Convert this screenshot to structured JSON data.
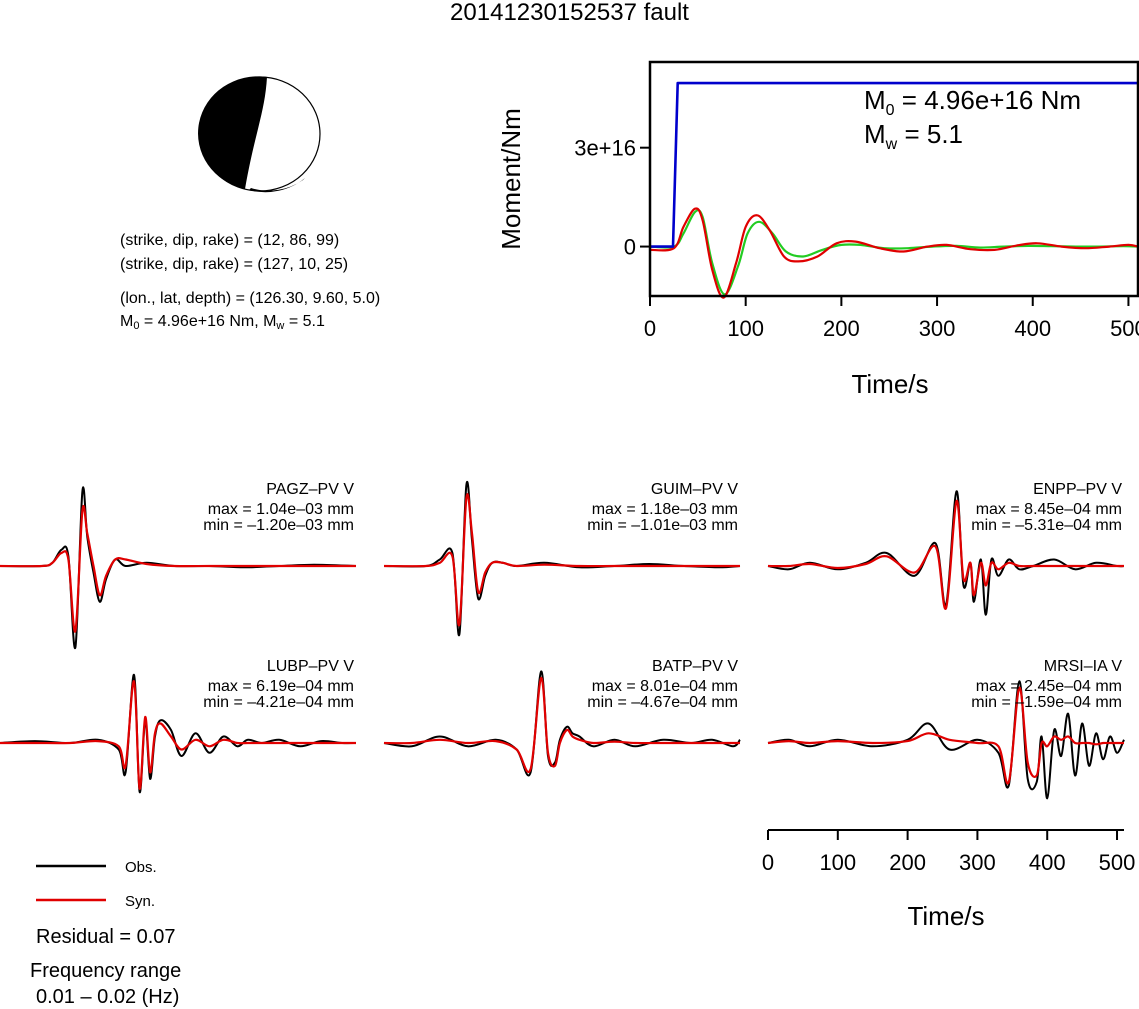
{
  "title": "20141230152537 fault",
  "info": {
    "strike1": "(strike, dip, rake) = (12, 86, 99)",
    "strike2": "(strike, dip, rake) = (127, 10, 25)",
    "location": "(lon., lat, depth) = (126.30, 9.60, 5.0)",
    "moment_prefix": "M",
    "moment_sub": "0",
    "moment_mid": " = 4.96e+16 Nm, M",
    "moment_sub2": "w",
    "moment_suffix": " = 5.1"
  },
  "beachball": {
    "strike": 12,
    "dip": 86,
    "rake": 99,
    "colors": {
      "fill": "#000000",
      "background": "#ffffff"
    }
  },
  "colors": {
    "observed": "#000000",
    "synthetic": "#e00000",
    "moment": "#0000cc",
    "green": "#22cc22"
  },
  "legend": {
    "obs": "Obs.",
    "syn": "Syn."
  },
  "residual": "Residual = 0.07",
  "frequency": {
    "label": "Frequency range",
    "range": "0.01 – 0.02 (Hz)"
  },
  "chart_data": [
    {
      "type": "line",
      "ylabel": "Moment/Nm",
      "xlabel": "Time/s",
      "xlim": [
        0,
        510
      ],
      "ylim": [
        -1.5e+16,
        5.6e+16
      ],
      "xticks": [
        0,
        100,
        200,
        300,
        400,
        500
      ],
      "xtick_labels": [
        "0",
        "100",
        "200",
        "300",
        "400",
        "500"
      ],
      "yticks": [
        0,
        3e+16
      ],
      "ytick_labels": [
        "0",
        "3e+16"
      ],
      "annotation": {
        "m0_prefix": "M",
        "m0_sub": "0",
        "m0_text": " = 4.96e+16 Nm",
        "mw_prefix": "M",
        "mw_sub": "w",
        "mw_text": " = 5.1"
      },
      "series": [
        {
          "name": "moment",
          "color": "#0000cc",
          "x": [
            0,
            24,
            29,
            510
          ],
          "y": [
            0,
            0,
            4.96e+16,
            4.96e+16
          ]
        },
        {
          "name": "rate-red",
          "color": "#e00000",
          "x": [
            0,
            25,
            35,
            47,
            55,
            65,
            77,
            90,
            100,
            112,
            125,
            140,
            155,
            175,
            195,
            215,
            240,
            265,
            290,
            310,
            335,
            360,
            385,
            405,
            430,
            455,
            480,
            500,
            510
          ],
          "y": [
            -1000000000000000.0,
            -500000000000000.0,
            6000000000000000.0,
            1.15e+16,
            8000000000000000.0,
            -7000000000000000.0,
            -1.55e+16,
            -5000000000000000.0,
            6000000000000000.0,
            9500000000000000.0,
            5000000000000000.0,
            -3000000000000000.0,
            -4500000000000000.0,
            -3000000000000000.0,
            1000000000000000.0,
            1500000000000000.0,
            -500000000000000.0,
            -1500000000000000.0,
            0,
            500000000000000.0,
            -800000000000000.0,
            -1000000000000000.0,
            400000000000000.0,
            1000000000000000.0,
            0,
            -500000000000000.0,
            0,
            500000000000000.0,
            0
          ]
        },
        {
          "name": "rate-green",
          "color": "#22cc22",
          "x": [
            0,
            25,
            35,
            47,
            55,
            65,
            78,
            92,
            102,
            114,
            128,
            142,
            160,
            180,
            200,
            220,
            245,
            270,
            295,
            320,
            345,
            370,
            395,
            420,
            445,
            470,
            495,
            510
          ],
          "y": [
            0,
            0,
            4000000000000000.0,
            1.05e+16,
            9000000000000000.0,
            -5000000000000000.0,
            -1.45e+16,
            -6000000000000000.0,
            4000000000000000.0,
            7500000000000000.0,
            4000000000000000.0,
            -1500000000000000.0,
            -3000000000000000.0,
            -1000000000000000.0,
            500000000000000.0,
            500000000000000.0,
            -500000000000000.0,
            -500000000000000.0,
            0,
            200000000000000.0,
            -300000000000000.0,
            0,
            200000000000000.0,
            100000000000000.0,
            0,
            0,
            100000000000000.0,
            0
          ]
        }
      ]
    },
    {
      "type": "line",
      "xlabel": "Time/s",
      "xlim": [
        0,
        510
      ],
      "xticks": [
        0,
        100,
        200,
        300,
        400,
        500
      ],
      "xtick_labels": [
        "0",
        "100",
        "200",
        "300",
        "400",
        "500"
      ],
      "ylim": [
        -1,
        1
      ],
      "traces": [
        {
          "station": "PAGZ–PV V",
          "max": "max = 1.04e–03 mm",
          "min": "min = –1.20e–03 mm",
          "obs": {
            "x": [
              0,
              60,
              75,
              88,
              98,
              108,
              118,
              125,
              134,
              143,
              152,
              165,
              180,
              210,
              250,
              300,
              350,
              400,
              450,
              510
            ],
            "y": [
              0,
              0,
              0.05,
              0.25,
              0.15,
              -1.25,
              1.15,
              0.45,
              -0.1,
              -0.55,
              -0.2,
              0.1,
              0,
              0.05,
              0,
              0,
              -0.02,
              0,
              0.02,
              0
            ]
          },
          "syn": {
            "x": [
              0,
              60,
              75,
              88,
              98,
              108,
              118,
              125,
              134,
              143,
              152,
              165,
              180,
              210,
              250,
              300,
              350,
              400,
              450,
              510
            ],
            "y": [
              0,
              0,
              0.05,
              0.2,
              0.1,
              -1.0,
              0.85,
              0.5,
              0,
              -0.45,
              -0.15,
              0.1,
              0.1,
              0.03,
              0,
              0,
              0,
              0,
              0,
              0
            ]
          }
        },
        {
          "station": "GUIM–PV V",
          "max": "max = 1.18e–03 mm",
          "min": "min = –1.01e–03 mm",
          "obs": {
            "x": [
              0,
              60,
              80,
              98,
              108,
              118,
              126,
              135,
              145,
              155,
              170,
              190,
              230,
              280,
              330,
              380,
              430,
              480,
              510
            ],
            "y": [
              0,
              0,
              0.1,
              0.2,
              -1.05,
              1.25,
              0.4,
              -0.5,
              -0.15,
              0.05,
              0.05,
              0,
              0.05,
              -0.02,
              0,
              0.03,
              0,
              -0.02,
              0
            ]
          },
          "syn": {
            "x": [
              0,
              60,
              80,
              98,
              108,
              118,
              126,
              135,
              145,
              155,
              170,
              190,
              230,
              280,
              330,
              380,
              430,
              480,
              510
            ],
            "y": [
              0,
              0,
              0.05,
              0.15,
              -0.9,
              1.05,
              0.5,
              -0.4,
              -0.1,
              0.05,
              0.05,
              0,
              0.02,
              0,
              0,
              0,
              0,
              0,
              0
            ]
          }
        },
        {
          "station": "ENPP–PV V",
          "max": "max = 8.45e–04 mm",
          "min": "min = –5.31e–04 mm",
          "obs": {
            "x": [
              0,
              30,
              60,
              100,
              140,
              170,
              210,
              240,
              255,
              270,
              280,
              290,
              295,
              305,
              312,
              320,
              330,
              345,
              360,
              380,
              410,
              440,
              470,
              500,
              510
            ],
            "y": [
              0,
              -0.05,
              0.05,
              -0.05,
              0.05,
              0.2,
              -0.15,
              0.35,
              -0.6,
              1.15,
              -0.3,
              0.05,
              -0.55,
              0.1,
              -0.75,
              0.1,
              -0.15,
              0.1,
              -0.05,
              0,
              0.1,
              -0.05,
              0.05,
              0,
              0
            ]
          },
          "syn": {
            "x": [
              0,
              30,
              60,
              100,
              140,
              170,
              210,
              240,
              255,
              270,
              280,
              290,
              295,
              305,
              312,
              320,
              330,
              345,
              360,
              380,
              410,
              440,
              470,
              500,
              510
            ],
            "y": [
              0,
              0,
              0.03,
              -0.03,
              0.03,
              0.15,
              -0.1,
              0.3,
              -0.65,
              1.0,
              -0.2,
              0.05,
              -0.45,
              0.05,
              -0.3,
              0.05,
              -0.05,
              0.05,
              0,
              0,
              0,
              0,
              0,
              0,
              0
            ]
          }
        },
        {
          "station": "LUBP–PV V",
          "max": "max = 6.19e–04 mm",
          "min": "min = –4.21e–04 mm",
          "obs": {
            "x": [
              0,
              50,
              100,
              140,
              170,
              180,
              192,
              200,
              208,
              215,
              222,
              230,
              245,
              260,
              280,
              300,
              320,
              340,
              355,
              375,
              400,
              430,
              460,
              490,
              510
            ],
            "y": [
              0,
              0.03,
              0,
              0.05,
              -0.1,
              -0.45,
              1.05,
              -0.75,
              0.35,
              -0.55,
              0.1,
              0.35,
              0.2,
              -0.2,
              0.15,
              -0.15,
              0.1,
              -0.05,
              0.05,
              0,
              0.05,
              -0.05,
              0.03,
              0,
              0
            ]
          },
          "syn": {
            "x": [
              0,
              50,
              100,
              140,
              170,
              180,
              192,
              200,
              208,
              215,
              222,
              230,
              245,
              260,
              280,
              300,
              320,
              340,
              355,
              375,
              400,
              430,
              460,
              490,
              510
            ],
            "y": [
              0,
              0,
              0,
              0.03,
              -0.05,
              -0.35,
              0.95,
              -0.7,
              0.4,
              -0.45,
              0.15,
              0.3,
              0.1,
              -0.1,
              0.05,
              -0.05,
              0.05,
              0,
              0,
              0,
              0,
              0,
              0,
              0,
              0
            ]
          }
        },
        {
          "station": "BATP–PV V",
          "max": "max = 8.01e–04 mm",
          "min": "min = –4.67e–04 mm",
          "obs": {
            "x": [
              0,
              40,
              80,
              120,
              160,
              190,
              210,
              225,
              235,
              245,
              252,
              262,
              270,
              280,
              300,
              330,
              360,
              400,
              440,
              470,
              500,
              510
            ],
            "y": [
              0,
              -0.05,
              0.1,
              -0.05,
              0.05,
              -0.1,
              -0.45,
              1.1,
              -0.2,
              -0.3,
              0.05,
              0.25,
              0.15,
              0.1,
              -0.05,
              0.05,
              -0.05,
              0.05,
              0,
              0.05,
              -0.05,
              0.05
            ]
          },
          "syn": {
            "x": [
              0,
              40,
              80,
              120,
              160,
              190,
              210,
              225,
              235,
              245,
              252,
              262,
              270,
              280,
              300,
              330,
              360,
              400,
              440,
              470,
              500,
              510
            ],
            "y": [
              0,
              0,
              0.05,
              0,
              0.03,
              -0.1,
              -0.4,
              1.0,
              -0.15,
              -0.35,
              0,
              0.2,
              0.1,
              0.05,
              0,
              0.02,
              0,
              0,
              0,
              0,
              0,
              0
            ]
          }
        },
        {
          "station": "MRSI–IA V",
          "max": "max = 2.45e–04 mm",
          "min": "min = –1.59e–04 mm",
          "obs": {
            "x": [
              0,
              30,
              60,
              100,
              150,
              200,
              230,
              260,
              300,
              330,
              345,
              360,
              372,
              385,
              392,
              400,
              410,
              420,
              430,
              440,
              450,
              460,
              470,
              480,
              490,
              500,
              510
            ],
            "y": [
              0,
              0.05,
              -0.05,
              0.05,
              -0.05,
              0.05,
              0.3,
              -0.1,
              0.05,
              -0.15,
              -0.65,
              0.95,
              -0.55,
              -0.6,
              0.1,
              -0.85,
              0.2,
              -0.2,
              0.45,
              -0.5,
              0.3,
              -0.35,
              0.15,
              -0.25,
              0.1,
              -0.15,
              0.05
            ]
          },
          "syn": {
            "x": [
              0,
              30,
              60,
              100,
              150,
              200,
              230,
              260,
              300,
              330,
              345,
              360,
              372,
              385,
              392,
              400,
              410,
              420,
              430,
              440,
              450,
              460,
              470,
              480,
              490,
              500,
              510
            ],
            "y": [
              0,
              0.03,
              0,
              0.03,
              0,
              0.03,
              0.15,
              0.05,
              0,
              -0.05,
              -0.6,
              0.85,
              -0.3,
              -0.5,
              0,
              -0.05,
              0.1,
              0.05,
              0.1,
              0,
              0,
              0,
              -0.02,
              0,
              0,
              0,
              0
            ]
          }
        }
      ]
    }
  ]
}
